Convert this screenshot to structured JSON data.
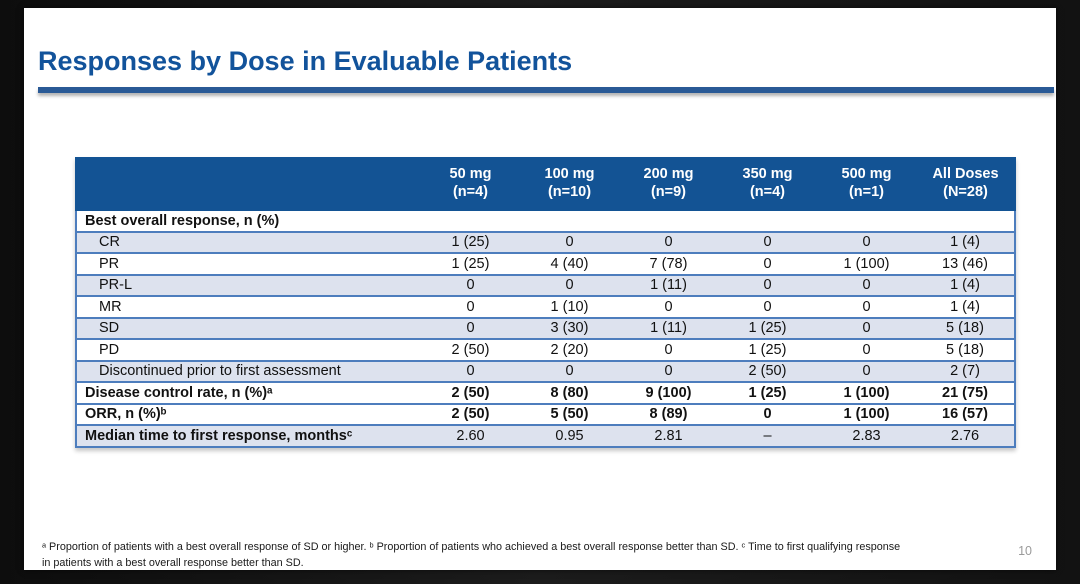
{
  "slide": {
    "title": "Responses by Dose in Evaluable Patients",
    "page_number": "10"
  },
  "table": {
    "columns": [
      {
        "dose": "50 mg",
        "n": "(n=4)"
      },
      {
        "dose": "100 mg",
        "n": "(n=10)"
      },
      {
        "dose": "200 mg",
        "n": "(n=9)"
      },
      {
        "dose": "350 mg",
        "n": "(n=4)"
      },
      {
        "dose": "500 mg",
        "n": "(n=1)"
      },
      {
        "dose": "All Doses",
        "n": "(N=28)"
      }
    ],
    "rows": [
      {
        "label": "Best overall response, n (%)",
        "style": "section",
        "shaded": false,
        "bold_values": false,
        "values": [
          "",
          "",
          "",
          "",
          "",
          ""
        ]
      },
      {
        "label": "CR",
        "style": "sub",
        "shaded": true,
        "bold_values": false,
        "values": [
          "1 (25)",
          "0",
          "0",
          "0",
          "0",
          "1 (4)"
        ]
      },
      {
        "label": "PR",
        "style": "sub",
        "shaded": false,
        "bold_values": false,
        "values": [
          "1 (25)",
          "4 (40)",
          "7 (78)",
          "0",
          "1 (100)",
          "13 (46)"
        ]
      },
      {
        "label": "PR-L",
        "style": "sub",
        "shaded": true,
        "bold_values": false,
        "values": [
          "0",
          "0",
          "1 (11)",
          "0",
          "0",
          "1 (4)"
        ]
      },
      {
        "label": "MR",
        "style": "sub",
        "shaded": false,
        "bold_values": false,
        "values": [
          "0",
          "1 (10)",
          "0",
          "0",
          "0",
          "1 (4)"
        ]
      },
      {
        "label": "SD",
        "style": "sub",
        "shaded": true,
        "bold_values": false,
        "values": [
          "0",
          "3 (30)",
          "1 (11)",
          "1 (25)",
          "0",
          "5 (18)"
        ]
      },
      {
        "label": "PD",
        "style": "sub",
        "shaded": false,
        "bold_values": false,
        "values": [
          "2 (50)",
          "2 (20)",
          "0",
          "1 (25)",
          "0",
          "5 (18)"
        ]
      },
      {
        "label": "Discontinued prior to first assessment",
        "style": "sub",
        "shaded": true,
        "bold_values": false,
        "values": [
          "0",
          "0",
          "0",
          "2 (50)",
          "0",
          "2 (7)"
        ]
      },
      {
        "label": "Disease control rate, n (%)ᵃ",
        "style": "section",
        "shaded": false,
        "bold_values": true,
        "values": [
          "2 (50)",
          "8 (80)",
          "9 (100)",
          "1 (25)",
          "1 (100)",
          "21 (75)"
        ]
      },
      {
        "label": "ORR, n (%)ᵇ",
        "style": "section",
        "shaded": false,
        "bold_values": true,
        "values": [
          "2 (50)",
          "5 (50)",
          "8 (89)",
          "0",
          "1 (100)",
          "16 (57)"
        ]
      },
      {
        "label": "Median time to first response, monthsᶜ",
        "style": "section",
        "shaded": true,
        "bold_values": false,
        "values": [
          "2.60",
          "0.95",
          "2.81",
          "–",
          "2.83",
          "2.76"
        ]
      }
    ]
  },
  "footnote": {
    "lines": [
      "ᵃ Proportion of patients with a best overall response of SD or higher. ᵇ Proportion of patients who achieved a best overall response better than SD. ᶜ Time to first qualifying response",
      "in patients with a best overall response better than SD."
    ]
  },
  "colors": {
    "header_bg": "#135394",
    "row_alt_bg": "#dde2ee",
    "grid_line": "#4d7dbd",
    "title_blue": "#12539b",
    "rule_blue": "#2a5a96"
  }
}
